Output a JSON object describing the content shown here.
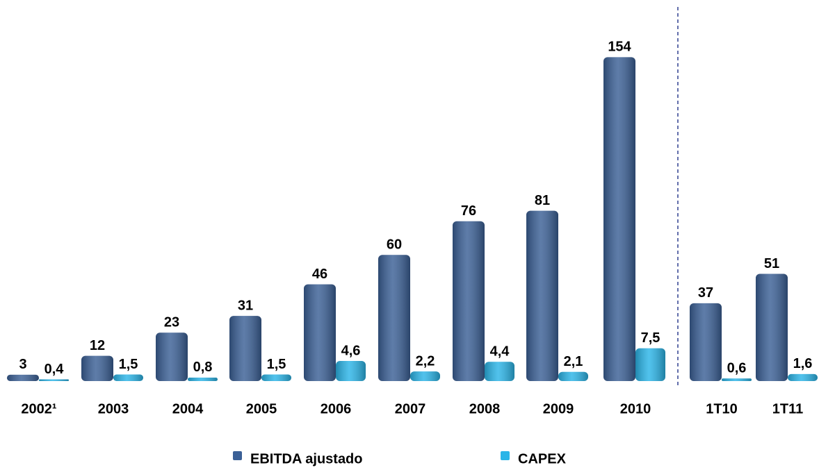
{
  "chart_data": {
    "type": "bar",
    "categories": [
      "2002¹",
      "2003",
      "2004",
      "2005",
      "2006",
      "2007",
      "2008",
      "2009",
      "2010",
      "1T10",
      "1T11"
    ],
    "series": [
      {
        "name": "EBITDA ajustado",
        "color": "#3b6096",
        "values": [
          3,
          12,
          23,
          31,
          46,
          60,
          76,
          81,
          154,
          37,
          51
        ]
      },
      {
        "name": "CAPEX",
        "color": "#2bb5e8",
        "axis": "y2",
        "values": [
          0.4,
          1.5,
          0.8,
          1.5,
          4.6,
          2.2,
          4.4,
          2.1,
          7.5,
          0.6,
          1.6
        ],
        "value_labels": [
          "0,4",
          "1,5",
          "0,8",
          "1,5",
          "4,6",
          "2,2",
          "4,4",
          "2,1",
          "7,5",
          "0,6",
          "1,6"
        ]
      }
    ]
  }
}
